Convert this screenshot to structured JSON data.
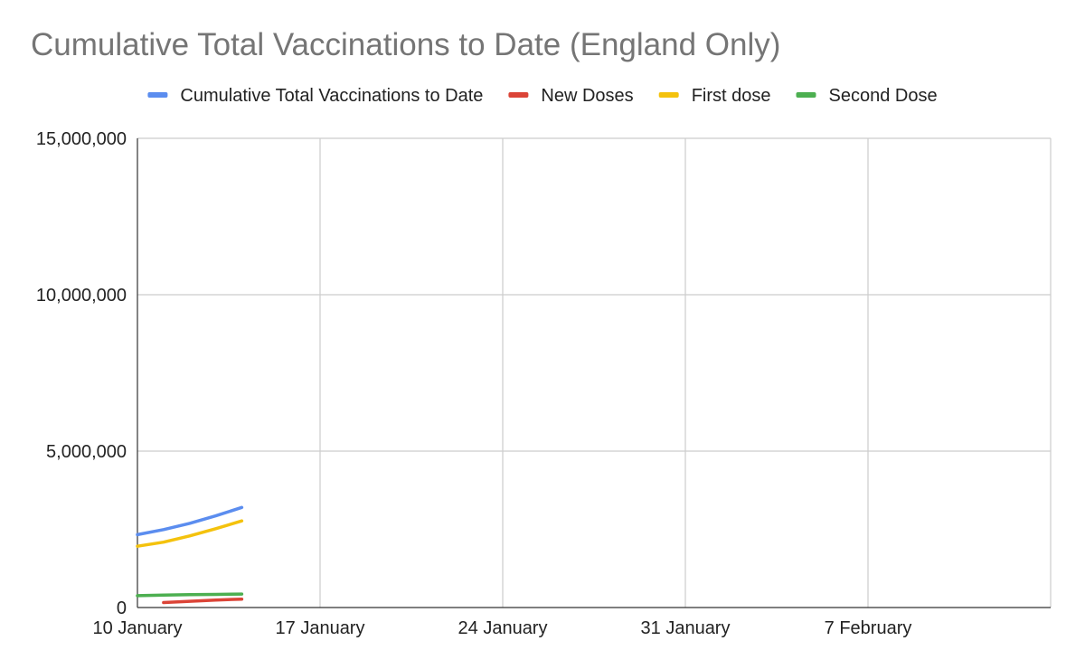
{
  "chart_data": {
    "type": "line",
    "title": "Cumulative Total Vaccinations to Date (England Only)",
    "xlabel": "",
    "ylabel": "",
    "legend_position": "top",
    "grid": true,
    "x_range": [
      "2021-01-10",
      "2021-02-14"
    ],
    "ylim": [
      0,
      15000000
    ],
    "x_ticks": [
      {
        "date": "2021-01-10",
        "label": "10 January"
      },
      {
        "date": "2021-01-17",
        "label": "17 January"
      },
      {
        "date": "2021-01-24",
        "label": "24 January"
      },
      {
        "date": "2021-01-31",
        "label": "31 January"
      },
      {
        "date": "2021-02-07",
        "label": "7 February"
      }
    ],
    "y_ticks": [
      {
        "value": 0,
        "label": "0"
      },
      {
        "value": 5000000,
        "label": "5,000,000"
      },
      {
        "value": 10000000,
        "label": "10,000,000"
      },
      {
        "value": 15000000,
        "label": "15,000,000"
      }
    ],
    "series": [
      {
        "name": "Cumulative Total Vaccinations to Date",
        "color": "#5b8def",
        "points": [
          {
            "x": "2021-01-10",
            "y": 2330000
          },
          {
            "x": "2021-01-11",
            "y": 2490000
          },
          {
            "x": "2021-01-12",
            "y": 2690000
          },
          {
            "x": "2021-01-13",
            "y": 2930000
          },
          {
            "x": "2021-01-14",
            "y": 3200000
          }
        ]
      },
      {
        "name": "New Doses",
        "color": "#db4437",
        "points": [
          {
            "x": "2021-01-11",
            "y": 160000
          },
          {
            "x": "2021-01-12",
            "y": 200000
          },
          {
            "x": "2021-01-13",
            "y": 240000
          },
          {
            "x": "2021-01-14",
            "y": 270000
          }
        ]
      },
      {
        "name": "First dose",
        "color": "#f4c20d",
        "points": [
          {
            "x": "2021-01-10",
            "y": 1960000
          },
          {
            "x": "2021-01-11",
            "y": 2090000
          },
          {
            "x": "2021-01-12",
            "y": 2290000
          },
          {
            "x": "2021-01-13",
            "y": 2520000
          },
          {
            "x": "2021-01-14",
            "y": 2770000
          }
        ]
      },
      {
        "name": "Second Dose",
        "color": "#4caf50",
        "points": [
          {
            "x": "2021-01-10",
            "y": 380000
          },
          {
            "x": "2021-01-11",
            "y": 400000
          },
          {
            "x": "2021-01-12",
            "y": 410000
          },
          {
            "x": "2021-01-13",
            "y": 420000
          },
          {
            "x": "2021-01-14",
            "y": 430000
          }
        ]
      }
    ]
  }
}
